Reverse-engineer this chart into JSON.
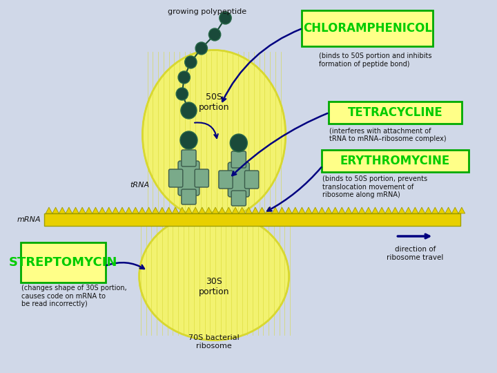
{
  "bg_color": "#d0d8e8",
  "labels": {
    "chloramphenicol": "CHLORAMPHENICOL",
    "tetracycline": "TETRACYCLINE",
    "erythromycine": "ERYTHROMYCINE",
    "streptomycin": "STREPTOMYCIN",
    "growing_polypeptide": "growing polypeptide",
    "50S_portion": "50S\nportion",
    "30S_portion": "30S\nportion",
    "70S_bacterial": "70S bacterial\nribosome",
    "mRNA": "mRNA",
    "tRNA": "tRNA",
    "direction": "direction of\nribosome travel",
    "chloramphenicol_desc": "(binds to 50S portion and inhibits\nformation of peptide bond)",
    "tetracycline_desc": "(interferes with attachment of\ntRNA to mRNA–ribosome complex)",
    "erythromycine_desc": "(binds to 50S portion, prevents\ntranslocation movement of\nribosome along mRNA)",
    "streptomycin_desc": "(changes shape of 30S portion,\ncauses code on mRNA to\nbe read incorrectly)"
  },
  "colors": {
    "yellow_ribosome": "#f2f270",
    "yellow_stripe": "#d8d830",
    "teal_dark": "#1a4a3a",
    "teal_medium": "#2a6a4a",
    "tRNA_color": "#7aaa8a",
    "mRNA_yellow": "#e8d000",
    "arrow_dark_blue": "#000080",
    "label_green": "#00cc00",
    "box_yellow": "#ffff88",
    "box_border_green": "#00aa00",
    "text_dark": "#111111"
  }
}
